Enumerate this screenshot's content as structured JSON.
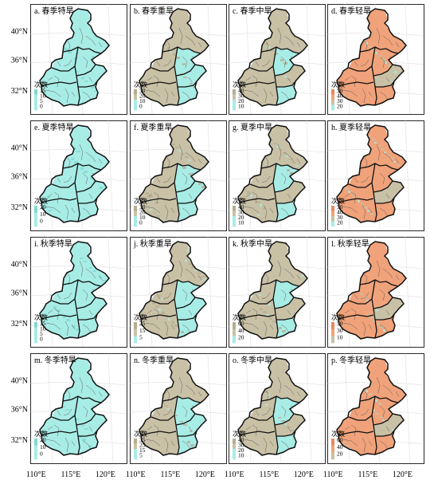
{
  "palette": {
    "cyan": "#a8ece6",
    "cyan_dark": "#7fd9d1",
    "tan": "#c9c1a6",
    "tan_dark": "#b6ad90",
    "orange": "#f0a27a",
    "orange_dark": "#e88a5e",
    "border": "#111111",
    "graticule": "#e3e3e3"
  },
  "axes": {
    "lat_labels": [
      "40°N",
      "36°N",
      "32°N"
    ],
    "lon_labels": [
      "110°E",
      "115°E",
      "120°E"
    ]
  },
  "legend_title": "次数",
  "panels": [
    {
      "title": "a. 春季特旱",
      "legend": [
        "15",
        "10",
        "5",
        "0"
      ],
      "scheme": "cyan"
    },
    {
      "title": "b. 春季重旱",
      "legend": [
        "30",
        "20",
        "10",
        "0"
      ],
      "scheme": "mix_tan"
    },
    {
      "title": "c. 春季中旱",
      "legend": [
        "40",
        "30",
        "20",
        "10"
      ],
      "scheme": "tan"
    },
    {
      "title": "d. 春季轻旱",
      "legend": [
        "50",
        "40",
        "30",
        "20"
      ],
      "scheme": "orange"
    },
    {
      "title": "e. 夏季特旱",
      "legend": [
        "20",
        "10",
        "0"
      ],
      "scheme": "cyan"
    },
    {
      "title": "f. 夏季重旱",
      "legend": [
        "30",
        "20",
        "10",
        "0"
      ],
      "scheme": "mix_tan"
    },
    {
      "title": "g. 夏季中旱",
      "legend": [
        "40",
        "30",
        "20",
        "10"
      ],
      "scheme": "tan"
    },
    {
      "title": "h. 夏季轻旱",
      "legend": [
        "50",
        "40",
        "30",
        "20"
      ],
      "scheme": "orange"
    },
    {
      "title": "i. 秋季特旱",
      "legend": [
        "15",
        "10",
        "5",
        "0"
      ],
      "scheme": "cyan"
    },
    {
      "title": "j. 秋季重旱",
      "legend": [
        "25",
        "15",
        "5"
      ],
      "scheme": "mix_tan"
    },
    {
      "title": "k. 秋季中旱",
      "legend": [
        "60",
        "40",
        "20"
      ],
      "scheme": "tan"
    },
    {
      "title": "l. 秋季轻旱",
      "legend": [
        "50",
        "30",
        "10"
      ],
      "scheme": "orange"
    },
    {
      "title": "m. 冬季特旱",
      "legend": [
        "20",
        "10",
        "0"
      ],
      "scheme": "cyan"
    },
    {
      "title": "n. 冬季重旱",
      "legend": [
        "35",
        "25",
        "15",
        "5"
      ],
      "scheme": "mix_tan"
    },
    {
      "title": "o. 冬季中旱",
      "legend": [
        "40",
        "30",
        "20",
        "10"
      ],
      "scheme": "tan"
    },
    {
      "title": "p. 冬季轻旱",
      "legend": [
        "60",
        "40",
        "20"
      ],
      "scheme": "orange"
    }
  ]
}
